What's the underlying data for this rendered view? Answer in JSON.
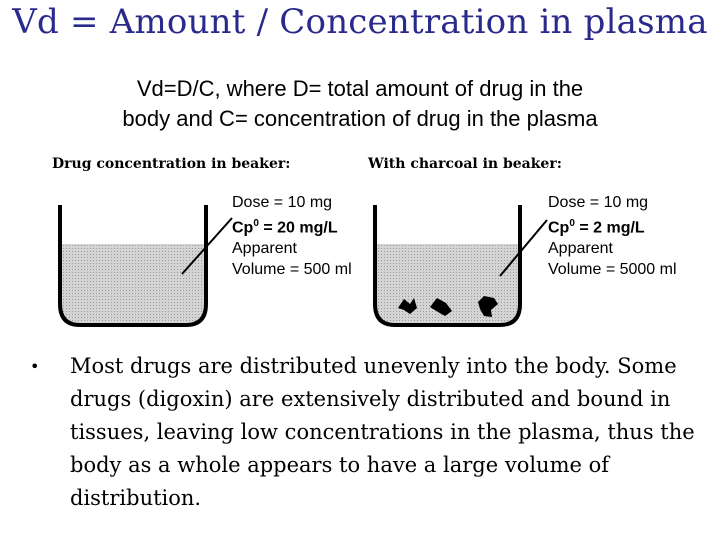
{
  "slide": {
    "title": "Vd = Amount / Concentration in plasma",
    "subtitle_line1": "Vd=D/C, where D= total amount of drug in the",
    "subtitle_line2": "body and C= concentration of drug in the plasma"
  },
  "figure": {
    "left": {
      "label": "Drug concentration in beaker:",
      "dose": "Dose = 10 mg",
      "cp0": "Cp",
      "cp0_sup": "0",
      "cp0_value": " = 20 mg/L",
      "apparent": "Apparent",
      "volume": "Volume = 500 ml"
    },
    "right": {
      "label": "With charcoal in beaker:",
      "dose": "Dose = 10 mg",
      "cp0": "Cp",
      "cp0_sup": "0",
      "cp0_value": " = 2 mg/L",
      "apparent": "Apparent",
      "volume": "Volume = 5000 ml"
    }
  },
  "bullet": {
    "symbol": "•",
    "text": "Most drugs are distributed unevenly into the body. Some drugs (digoxin) are extensively distributed and bound in tissues, leaving low concentrations in the plasma, thus the body as a whole appears to have a large volume of distribution."
  },
  "colors": {
    "title": "#2a2a8c",
    "liquid": "#c8c8c8"
  }
}
